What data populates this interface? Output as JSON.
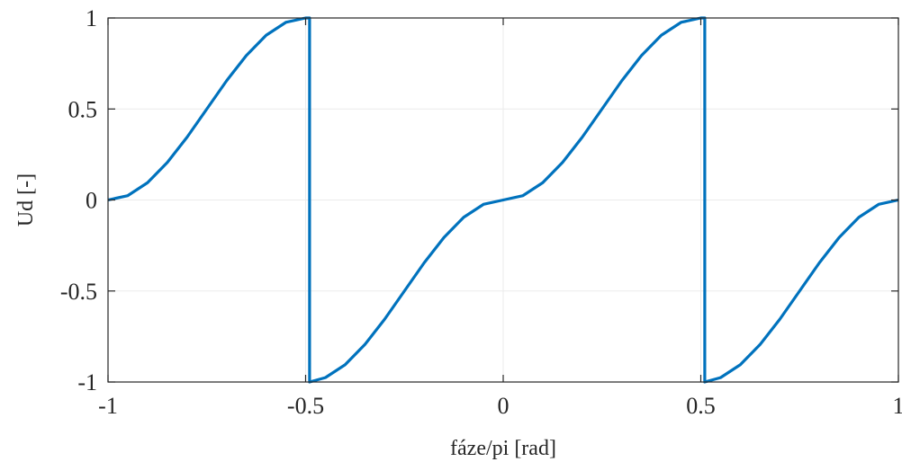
{
  "chart_data": {
    "type": "line",
    "title": "",
    "xlabel": "fáze/pi [rad]",
    "ylabel": "Ud [-]",
    "xlim": [
      -1,
      1
    ],
    "ylim": [
      -1,
      1
    ],
    "grid": true,
    "xticks": [
      -1,
      -0.5,
      0,
      0.5,
      1
    ],
    "xtick_labels": [
      "-1",
      "-0.5",
      "0",
      "0.5",
      "1"
    ],
    "yticks": [
      -1,
      -0.5,
      0,
      0.5,
      1
    ],
    "ytick_labels": [
      "-1",
      "-0.5",
      "0",
      "0.5",
      "1"
    ],
    "line_color": "#0072BD",
    "grid_color": "#ebebeb",
    "axis_color": "#262626",
    "series": [
      {
        "x": [
          -1,
          -0.95,
          -0.9,
          -0.85,
          -0.8,
          -0.75,
          -0.7,
          -0.65,
          -0.6,
          -0.55,
          -0.5,
          -0.49,
          -0.49,
          -0.45,
          -0.4,
          -0.35,
          -0.3,
          -0.25,
          -0.2,
          -0.15,
          -0.1,
          -0.05,
          0,
          0.05,
          0.1,
          0.15,
          0.2,
          0.25,
          0.3,
          0.35,
          0.4,
          0.45,
          0.5,
          0.51,
          0.51,
          0.55,
          0.6,
          0.65,
          0.7,
          0.75,
          0.8,
          0.85,
          0.9,
          0.95,
          1
        ],
        "y": [
          0,
          0.024,
          0.095,
          0.206,
          0.345,
          0.5,
          0.655,
          0.794,
          0.905,
          0.976,
          1,
          1,
          -1,
          -0.976,
          -0.905,
          -0.794,
          -0.655,
          -0.5,
          -0.345,
          -0.206,
          -0.095,
          -0.024,
          0,
          0.024,
          0.095,
          0.206,
          0.345,
          0.5,
          0.655,
          0.794,
          0.905,
          0.976,
          1,
          1,
          -1,
          -0.976,
          -0.905,
          -0.794,
          -0.655,
          -0.5,
          -0.345,
          -0.206,
          -0.095,
          -0.024,
          0
        ]
      }
    ]
  }
}
